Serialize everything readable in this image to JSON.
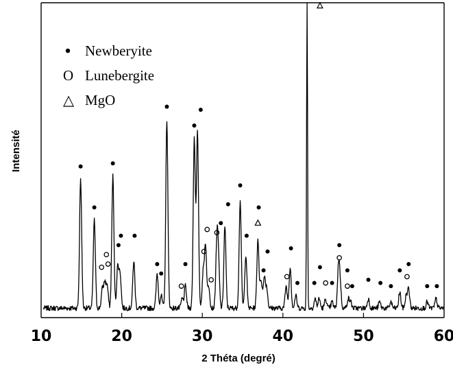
{
  "chart_data": {
    "type": "line",
    "title": "",
    "xlabel": "2 Théta (degré)",
    "ylabel": "Intensité",
    "xlim": [
      10,
      60
    ],
    "ylim": [
      0,
      100
    ],
    "xticks": [
      10,
      20,
      30,
      40,
      50,
      60
    ],
    "y_tick_labels_shown": false,
    "grid": false,
    "legend_position": "top-left",
    "legend": [
      {
        "marker": "filled-dot",
        "label": "Newberyite"
      },
      {
        "marker": "O",
        "label": "Lunebergite"
      },
      {
        "marker": "△",
        "label": "MgO"
      }
    ],
    "baseline": 3,
    "peaks": [
      {
        "x": 14.9,
        "y": 44
      },
      {
        "x": 16.6,
        "y": 31
      },
      {
        "x": 17.6,
        "y": 9
      },
      {
        "x": 17.9,
        "y": 11
      },
      {
        "x": 18.2,
        "y": 10
      },
      {
        "x": 18.9,
        "y": 45
      },
      {
        "x": 19.5,
        "y": 16
      },
      {
        "x": 19.8,
        "y": 14
      },
      {
        "x": 21.5,
        "y": 18
      },
      {
        "x": 24.4,
        "y": 14
      },
      {
        "x": 24.9,
        "y": 7
      },
      {
        "x": 25.6,
        "y": 63
      },
      {
        "x": 27.5,
        "y": 6
      },
      {
        "x": 27.9,
        "y": 10
      },
      {
        "x": 29.0,
        "y": 57
      },
      {
        "x": 29.4,
        "y": 59
      },
      {
        "x": 30.1,
        "y": 14
      },
      {
        "x": 30.4,
        "y": 23
      },
      {
        "x": 30.8,
        "y": 10
      },
      {
        "x": 31.8,
        "y": 23
      },
      {
        "x": 32.0,
        "y": 17
      },
      {
        "x": 32.8,
        "y": 29
      },
      {
        "x": 34.7,
        "y": 37
      },
      {
        "x": 35.4,
        "y": 20
      },
      {
        "x": 36.9,
        "y": 25
      },
      {
        "x": 37.3,
        "y": 12
      },
      {
        "x": 37.7,
        "y": 13
      },
      {
        "x": 38.0,
        "y": 9
      },
      {
        "x": 40.4,
        "y": 10
      },
      {
        "x": 40.9,
        "y": 16
      },
      {
        "x": 41.6,
        "y": 7
      },
      {
        "x": 43.0,
        "y": 100
      },
      {
        "x": 44.0,
        "y": 6
      },
      {
        "x": 44.5,
        "y": 6
      },
      {
        "x": 45.3,
        "y": 6
      },
      {
        "x": 46.1,
        "y": 5
      },
      {
        "x": 46.9,
        "y": 16
      },
      {
        "x": 47.1,
        "y": 10
      },
      {
        "x": 48.1,
        "y": 6
      },
      {
        "x": 48.4,
        "y": 5
      },
      {
        "x": 50.6,
        "y": 6
      },
      {
        "x": 52.0,
        "y": 5
      },
      {
        "x": 53.4,
        "y": 5
      },
      {
        "x": 54.5,
        "y": 8
      },
      {
        "x": 55.3,
        "y": 7
      },
      {
        "x": 55.6,
        "y": 9
      },
      {
        "x": 57.9,
        "y": 5
      },
      {
        "x": 59.0,
        "y": 6
      }
    ],
    "annotations": [
      {
        "x": 14.9,
        "y": 48,
        "marker": "dot"
      },
      {
        "x": 16.6,
        "y": 35,
        "marker": "dot"
      },
      {
        "x": 17.5,
        "y": 16,
        "marker": "o"
      },
      {
        "x": 18.1,
        "y": 20,
        "marker": "o"
      },
      {
        "x": 18.3,
        "y": 17,
        "marker": "o"
      },
      {
        "x": 18.9,
        "y": 49,
        "marker": "dot"
      },
      {
        "x": 19.6,
        "y": 23,
        "marker": "dot"
      },
      {
        "x": 19.9,
        "y": 26,
        "marker": "dot"
      },
      {
        "x": 21.6,
        "y": 26,
        "marker": "dot"
      },
      {
        "x": 24.4,
        "y": 17,
        "marker": "dot"
      },
      {
        "x": 24.9,
        "y": 14,
        "marker": "dot"
      },
      {
        "x": 25.6,
        "y": 67,
        "marker": "dot"
      },
      {
        "x": 27.4,
        "y": 10,
        "marker": "o"
      },
      {
        "x": 27.9,
        "y": 17,
        "marker": "dot"
      },
      {
        "x": 29.0,
        "y": 61,
        "marker": "dot"
      },
      {
        "x": 29.8,
        "y": 66,
        "marker": "dot"
      },
      {
        "x": 30.2,
        "y": 21,
        "marker": "o"
      },
      {
        "x": 30.6,
        "y": 28,
        "marker": "o"
      },
      {
        "x": 31.1,
        "y": 12,
        "marker": "o"
      },
      {
        "x": 31.8,
        "y": 27,
        "marker": "o"
      },
      {
        "x": 32.3,
        "y": 30,
        "marker": "dot"
      },
      {
        "x": 33.2,
        "y": 36,
        "marker": "dot"
      },
      {
        "x": 34.7,
        "y": 42,
        "marker": "dot"
      },
      {
        "x": 35.5,
        "y": 26,
        "marker": "dot"
      },
      {
        "x": 36.9,
        "y": 30,
        "marker": "triangle"
      },
      {
        "x": 37.0,
        "y": 35,
        "marker": "dot"
      },
      {
        "x": 37.6,
        "y": 15,
        "marker": "dot"
      },
      {
        "x": 38.1,
        "y": 21,
        "marker": "dot"
      },
      {
        "x": 40.5,
        "y": 13,
        "marker": "o"
      },
      {
        "x": 41.0,
        "y": 22,
        "marker": "dot"
      },
      {
        "x": 41.8,
        "y": 11,
        "marker": "dot"
      },
      {
        "x": 44.6,
        "y": 99,
        "marker": "triangle"
      },
      {
        "x": 44.6,
        "y": 16,
        "marker": "dot"
      },
      {
        "x": 43.9,
        "y": 11,
        "marker": "dot"
      },
      {
        "x": 45.3,
        "y": 11,
        "marker": "o"
      },
      {
        "x": 46.1,
        "y": 11,
        "marker": "dot"
      },
      {
        "x": 47.0,
        "y": 23,
        "marker": "dot"
      },
      {
        "x": 47.0,
        "y": 19,
        "marker": "o"
      },
      {
        "x": 48.0,
        "y": 15,
        "marker": "dot"
      },
      {
        "x": 48.0,
        "y": 10,
        "marker": "o"
      },
      {
        "x": 48.6,
        "y": 10,
        "marker": "dot"
      },
      {
        "x": 50.6,
        "y": 12,
        "marker": "dot"
      },
      {
        "x": 52.1,
        "y": 11,
        "marker": "dot"
      },
      {
        "x": 53.4,
        "y": 10,
        "marker": "dot"
      },
      {
        "x": 54.5,
        "y": 15,
        "marker": "dot"
      },
      {
        "x": 55.4,
        "y": 13,
        "marker": "o"
      },
      {
        "x": 55.6,
        "y": 17,
        "marker": "dot"
      },
      {
        "x": 57.9,
        "y": 10,
        "marker": "dot"
      },
      {
        "x": 59.1,
        "y": 10,
        "marker": "dot"
      }
    ]
  }
}
